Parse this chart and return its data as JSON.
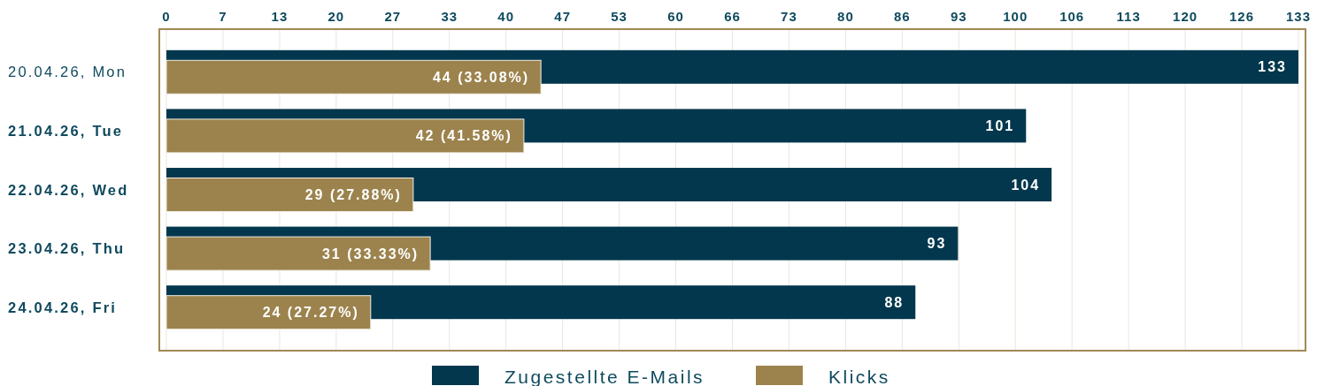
{
  "chart_data": {
    "type": "bar",
    "orientation": "horizontal",
    "categories": [
      "20.04.26, Mon",
      "21.04.26, Tue",
      "22.04.26, Wed",
      "23.04.26, Thu",
      "24.04.26, Fri"
    ],
    "series": [
      {
        "name": "Zugestellte E-Mails",
        "color": "#02374d",
        "values": [
          133,
          101,
          104,
          93,
          88
        ],
        "value_labels": [
          "133",
          "101",
          "104",
          "93",
          "88"
        ]
      },
      {
        "name": "Klicks",
        "color": "#9c834d",
        "values": [
          44,
          42,
          29,
          31,
          24
        ],
        "value_labels": [
          "44 (33.08%)",
          "42 (41.58%)",
          "29 (27.88%)",
          "31 (33.33%)",
          "24 (27.27%)"
        ]
      }
    ],
    "xlim": [
      0,
      133
    ],
    "xticks": [
      0,
      {
        "value": 6.65,
        "label": "7"
      },
      {
        "value": 13.3,
        "label": "13"
      },
      {
        "value": 19.95,
        "label": "20"
      },
      {
        "value": 26.6,
        "label": "27"
      },
      {
        "value": 33.25,
        "label": "33"
      },
      {
        "value": 39.9,
        "label": "40"
      },
      {
        "value": 46.55,
        "label": "47"
      },
      {
        "value": 53.2,
        "label": "53"
      },
      {
        "value": 59.85,
        "label": "60"
      },
      {
        "value": 66.5,
        "label": "66"
      },
      {
        "value": 73.15,
        "label": "73"
      },
      {
        "value": 79.8,
        "label": "80"
      },
      {
        "value": 86.45,
        "label": "86"
      },
      {
        "value": 93.1,
        "label": "93"
      },
      {
        "value": 99.75,
        "label": "100"
      },
      {
        "value": 106.4,
        "label": "106"
      },
      {
        "value": 113.05,
        "label": "113"
      },
      {
        "value": 119.7,
        "label": "120"
      },
      {
        "value": 126.35,
        "label": "126"
      },
      133
    ],
    "grid": "x",
    "legend": "bottom"
  }
}
